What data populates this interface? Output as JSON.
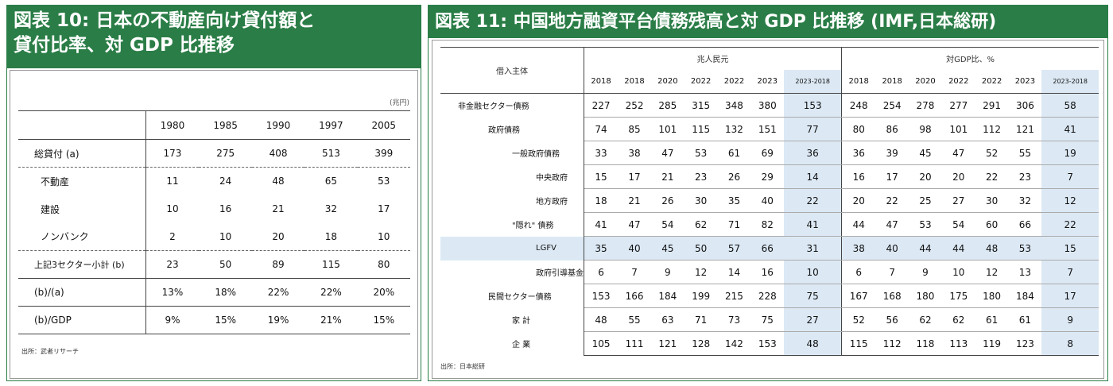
{
  "left": {
    "title_line1": "図表 10: 日本の不動産向け貸付額と",
    "title_line2": "貸付比率、対 GDP 比推移",
    "unit": "(兆円)",
    "columns": [
      "1980",
      "1985",
      "1990",
      "1997",
      "2005"
    ],
    "rows": [
      {
        "label": "総貸付 (a)",
        "values": [
          "173",
          "275",
          "408",
          "513",
          "399"
        ]
      },
      {
        "label": "不動産",
        "values": [
          "11",
          "24",
          "48",
          "65",
          "53"
        ]
      },
      {
        "label": "建設",
        "values": [
          "10",
          "16",
          "21",
          "32",
          "17"
        ]
      },
      {
        "label": "ノンバンク",
        "values": [
          "2",
          "10",
          "20",
          "18",
          "10"
        ]
      },
      {
        "label": "上記3セクター小計 (b)",
        "values": [
          "23",
          "50",
          "89",
          "115",
          "80"
        ]
      },
      {
        "label": "(b)/(a)",
        "values": [
          "13%",
          "18%",
          "22%",
          "22%",
          "20%"
        ]
      },
      {
        "label": "(b)/GDP",
        "values": [
          "9%",
          "15%",
          "19%",
          "21%",
          "15%"
        ]
      }
    ],
    "source": "出所：武者リサーチ"
  },
  "right": {
    "title": "図表 11: 中国地方融資平台債務残高と対 GDP 比推移 (IMF,日本総研)",
    "row_header": "借入主体",
    "group1": "兆人民元",
    "group2": "対GDP比、%",
    "years1": [
      "2018",
      "2018",
      "2020",
      "2022",
      "2022",
      "2023",
      "2023-2018"
    ],
    "years2": [
      "2018",
      "2018",
      "2020",
      "2022",
      "2022",
      "2023",
      "2023-2018"
    ],
    "rows": [
      {
        "label": "非金融セクター債務",
        "v1": [
          "227",
          "252",
          "285",
          "315",
          "348",
          "380",
          "153"
        ],
        "v2": [
          "248",
          "254",
          "278",
          "277",
          "291",
          "306",
          "58"
        ]
      },
      {
        "label": "政府債務",
        "v1": [
          "74",
          "85",
          "101",
          "115",
          "132",
          "151",
          "77"
        ],
        "v2": [
          "80",
          "86",
          "98",
          "101",
          "112",
          "121",
          "41"
        ]
      },
      {
        "label": "一般政府債務",
        "v1": [
          "33",
          "38",
          "47",
          "53",
          "61",
          "69",
          "36"
        ],
        "v2": [
          "36",
          "39",
          "45",
          "47",
          "52",
          "55",
          "19"
        ]
      },
      {
        "label": "中央政府",
        "v1": [
          "15",
          "17",
          "21",
          "23",
          "26",
          "29",
          "14"
        ],
        "v2": [
          "16",
          "17",
          "20",
          "20",
          "22",
          "23",
          "7"
        ]
      },
      {
        "label": "地方政府",
        "v1": [
          "18",
          "21",
          "26",
          "30",
          "35",
          "40",
          "22"
        ],
        "v2": [
          "20",
          "22",
          "25",
          "27",
          "30",
          "32",
          "12"
        ]
      },
      {
        "label": "\"隠れ\" 債務",
        "v1": [
          "41",
          "47",
          "54",
          "62",
          "71",
          "82",
          "41"
        ],
        "v2": [
          "44",
          "47",
          "53",
          "54",
          "60",
          "66",
          "22"
        ]
      },
      {
        "label": "LGFV",
        "v1": [
          "35",
          "40",
          "45",
          "50",
          "57",
          "66",
          "31"
        ],
        "v2": [
          "38",
          "40",
          "44",
          "44",
          "48",
          "53",
          "15"
        ]
      },
      {
        "label": "政府引導基金",
        "v1": [
          "6",
          "7",
          "9",
          "12",
          "14",
          "16",
          "10"
        ],
        "v2": [
          "6",
          "7",
          "9",
          "10",
          "12",
          "13",
          "7"
        ]
      },
      {
        "label": "民間セクター債務",
        "v1": [
          "153",
          "166",
          "184",
          "199",
          "215",
          "228",
          "75"
        ],
        "v2": [
          "167",
          "168",
          "180",
          "175",
          "180",
          "184",
          "17"
        ]
      },
      {
        "label": "家 計",
        "v1": [
          "48",
          "55",
          "63",
          "71",
          "73",
          "75",
          "27"
        ],
        "v2": [
          "52",
          "56",
          "62",
          "62",
          "61",
          "61",
          "9"
        ]
      },
      {
        "label": "企 業",
        "v1": [
          "105",
          "111",
          "121",
          "128",
          "142",
          "153",
          "48"
        ],
        "v2": [
          "115",
          "112",
          "118",
          "113",
          "119",
          "123",
          "8"
        ]
      }
    ],
    "source": "出所：日本総研"
  }
}
